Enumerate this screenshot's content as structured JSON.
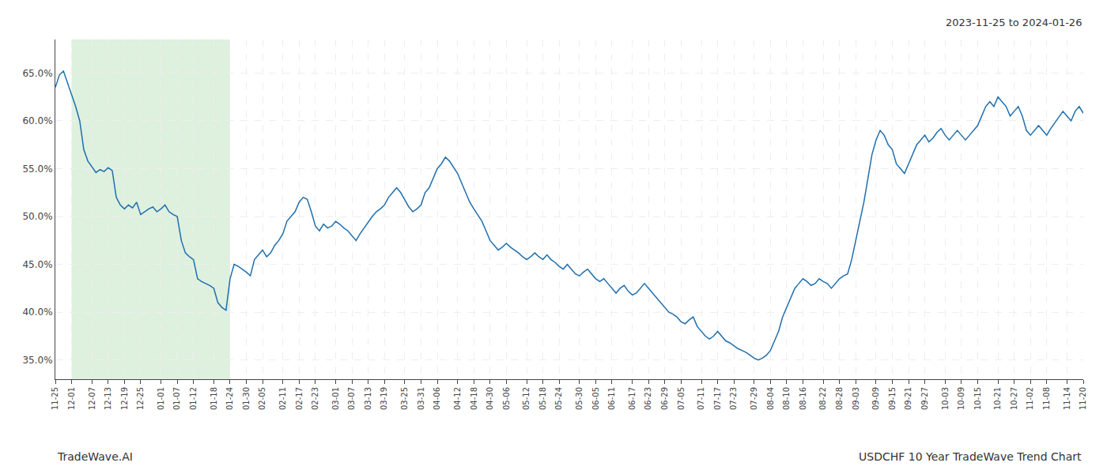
{
  "chart_data": {
    "type": "line",
    "title": "USDCHF 10 Year TradeWave Trend Chart",
    "subtitle": "2023-11-25 to 2024-01-26",
    "annotations": [
      "TradeWave.AI"
    ],
    "color": "#1f6fad",
    "grid": true,
    "ylim": [
      33.0,
      68.5
    ],
    "yticks": [
      {
        "value": 35.0,
        "label": "35.0%"
      },
      {
        "value": 40.0,
        "label": "40.0%"
      },
      {
        "value": 45.0,
        "label": "45.0%"
      },
      {
        "value": 50.0,
        "label": "50.0%"
      },
      {
        "value": 55.0,
        "label": "55.0%"
      },
      {
        "value": 60.0,
        "label": "60.0%"
      },
      {
        "value": 65.0,
        "label": "65.0%"
      }
    ],
    "shaded_region": {
      "start": "12-01",
      "end": "01-24",
      "color": "#c8e6c8"
    },
    "categories": [
      "11-25",
      null,
      null,
      null,
      "12-01",
      null,
      null,
      null,
      null,
      "12-07",
      null,
      null,
      null,
      "12-13",
      null,
      null,
      null,
      "12-19",
      null,
      null,
      null,
      "12-25",
      null,
      null,
      null,
      null,
      "01-01",
      null,
      null,
      null,
      "01-07",
      null,
      null,
      null,
      "01-12",
      null,
      null,
      null,
      null,
      "01-18",
      null,
      null,
      null,
      "01-24",
      null,
      null,
      null,
      "01-30",
      null,
      null,
      null,
      "02-05",
      null,
      null,
      null,
      null,
      "02-11",
      null,
      null,
      null,
      "02-17",
      null,
      null,
      null,
      "02-23",
      null,
      null,
      null,
      null,
      "03-01",
      null,
      null,
      null,
      "03-07",
      null,
      null,
      null,
      "03-13",
      null,
      null,
      null,
      "03-19",
      null,
      null,
      null,
      null,
      "03-25",
      null,
      null,
      null,
      "03-31",
      null,
      null,
      null,
      "04-06",
      null,
      null,
      null,
      null,
      "04-12",
      null,
      null,
      null,
      "04-18",
      null,
      null,
      null,
      "04-30",
      null,
      null,
      null,
      "05-06",
      null,
      null,
      null,
      null,
      "05-12",
      null,
      null,
      null,
      "05-18",
      null,
      null,
      null,
      "05-24",
      null,
      null,
      null,
      null,
      "05-30",
      null,
      null,
      null,
      "06-05",
      null,
      null,
      null,
      "06-11",
      null,
      null,
      null,
      null,
      "06-17",
      null,
      null,
      null,
      "06-23",
      null,
      null,
      null,
      "06-29",
      null,
      null,
      null,
      "07-05",
      null,
      null,
      null,
      null,
      "07-11",
      null,
      null,
      null,
      "07-17",
      null,
      null,
      null,
      "07-23",
      null,
      null,
      null,
      null,
      "07-29",
      null,
      null,
      null,
      "08-04",
      null,
      null,
      null,
      "08-10",
      null,
      null,
      null,
      "08-16",
      null,
      null,
      null,
      null,
      "08-22",
      null,
      null,
      null,
      "08-28",
      null,
      null,
      null,
      "09-03",
      null,
      null,
      null,
      null,
      "09-09",
      null,
      null,
      null,
      "09-15",
      null,
      null,
      null,
      "09-21",
      null,
      null,
      null,
      "09-27",
      null,
      null,
      null,
      null,
      "10-03",
      null,
      null,
      null,
      "10-09",
      null,
      null,
      null,
      "10-15",
      null,
      null,
      null,
      null,
      "10-21",
      null,
      null,
      null,
      "10-27",
      null,
      null,
      null,
      "11-02",
      null,
      null,
      null,
      "11-08",
      null,
      null,
      null,
      null,
      "11-14",
      null,
      null,
      null,
      "11-20"
    ],
    "values": [
      63.5,
      64.8,
      65.2,
      64.0,
      62.8,
      61.5,
      60.0,
      57.0,
      55.8,
      55.2,
      54.6,
      54.9,
      54.7,
      55.1,
      54.8,
      52.0,
      51.2,
      50.8,
      51.2,
      50.9,
      51.5,
      50.2,
      50.5,
      50.8,
      51.0,
      50.5,
      50.8,
      51.2,
      50.5,
      50.2,
      50.0,
      47.5,
      46.2,
      45.8,
      45.5,
      43.5,
      43.2,
      43.0,
      42.8,
      42.5,
      41.0,
      40.5,
      40.2,
      43.5,
      45.0,
      44.8,
      44.5,
      44.2,
      43.8,
      45.5,
      46.0,
      46.5,
      45.8,
      46.2,
      47.0,
      47.5,
      48.2,
      49.5,
      50.0,
      50.5,
      51.5,
      52.0,
      51.8,
      50.5,
      49.0,
      48.5,
      49.2,
      48.8,
      49.0,
      49.5,
      49.2,
      48.8,
      48.5,
      48.0,
      47.5,
      48.2,
      48.8,
      49.5,
      50.0,
      50.5,
      50.8,
      51.2,
      52.0,
      52.5,
      53.0,
      52.5,
      51.8,
      51.0,
      50.5,
      50.8,
      51.2,
      52.5,
      53.0,
      54.0,
      55.0,
      55.5,
      56.2,
      55.8,
      55.2,
      54.5,
      53.5,
      52.5,
      51.5,
      50.8,
      50.2,
      49.5,
      48.5,
      47.5,
      47.0,
      46.5,
      46.8,
      47.2,
      46.8,
      46.5,
      46.2,
      45.8,
      45.5,
      45.8,
      46.2,
      45.8,
      45.5,
      46.0,
      45.5,
      45.2,
      44.8,
      44.5,
      45.0,
      44.5,
      44.0,
      43.8,
      44.2,
      44.5,
      44.0,
      43.5,
      43.2,
      43.5,
      43.0,
      42.5,
      42.0,
      42.5,
      42.8,
      42.2,
      41.8,
      42.0,
      42.5,
      43.0,
      42.5,
      42.0,
      41.5,
      41.0,
      40.5,
      40.0,
      39.8,
      39.5,
      39.0,
      38.8,
      39.2,
      39.5,
      38.5,
      38.0,
      37.5,
      37.2,
      37.5,
      38.0,
      37.5,
      37.0,
      36.8,
      36.5,
      36.2,
      36.0,
      35.8,
      35.5,
      35.2,
      35.0,
      35.2,
      35.5,
      36.0,
      37.0,
      38.0,
      39.5,
      40.5,
      41.5,
      42.5,
      43.0,
      43.5,
      43.2,
      42.8,
      43.0,
      43.5,
      43.2,
      43.0,
      42.5,
      43.0,
      43.5,
      43.8,
      44.0,
      45.5,
      47.5,
      49.5,
      51.5,
      54.0,
      56.5,
      58.0,
      59.0,
      58.5,
      57.5,
      57.0,
      55.5,
      55.0,
      54.5,
      55.5,
      56.5,
      57.5,
      58.0,
      58.5,
      57.8,
      58.2,
      58.8,
      59.2,
      58.5,
      58.0,
      58.5,
      59.0,
      58.5,
      58.0,
      58.5,
      59.0,
      59.5,
      60.5,
      61.5,
      62.0,
      61.5,
      62.5,
      62.0,
      61.5,
      60.5,
      61.0,
      61.5,
      60.5,
      59.0,
      58.5,
      59.0,
      59.5,
      59.0,
      58.5,
      59.2,
      59.8,
      60.5,
      61.0,
      60.5,
      60.0,
      61.0,
      61.5,
      60.8
    ]
  }
}
